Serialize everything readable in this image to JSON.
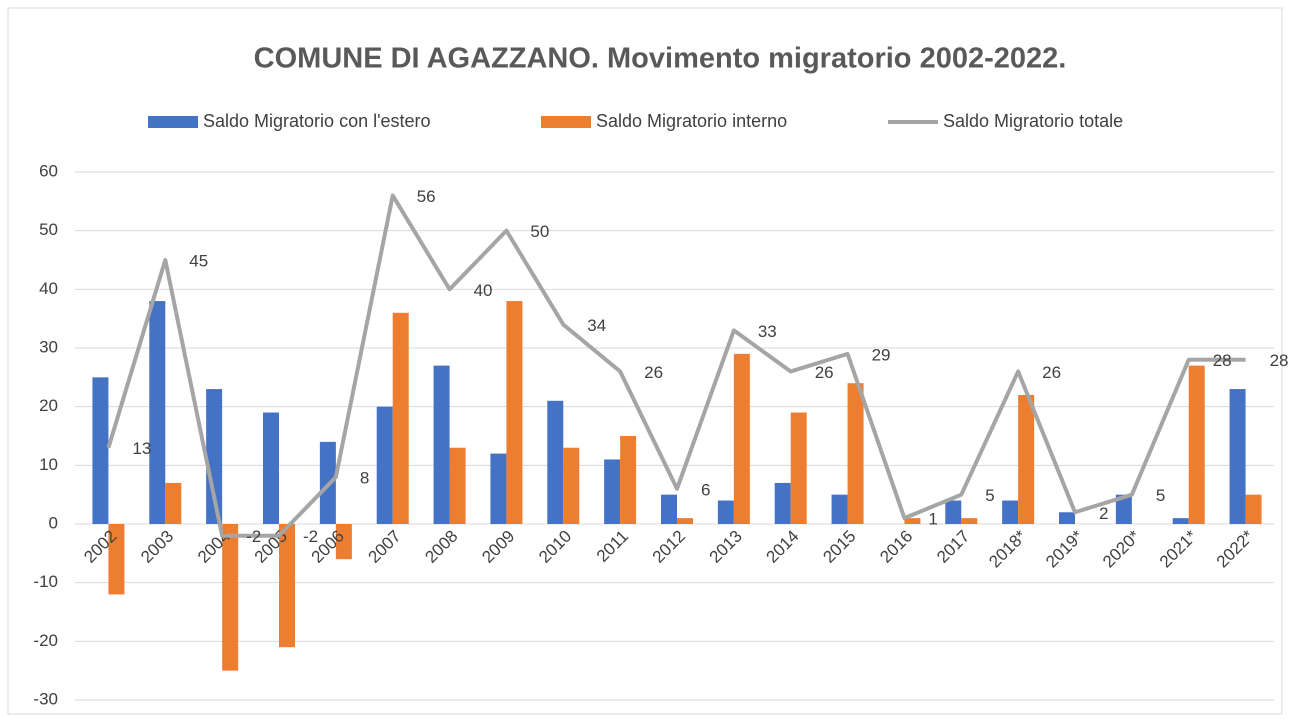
{
  "chart_data": {
    "type": "bar_line",
    "title": "COMUNE DI AGAZZANO. Movimento migratorio 2002-2022.",
    "categories": [
      "2002",
      "2003",
      "2004",
      "2005",
      "2006",
      "2007",
      "2008",
      "2009",
      "2010",
      "2011",
      "2012",
      "2013",
      "2014",
      "2015",
      "2016",
      "2017",
      "2018*",
      "2019*",
      "2020*",
      "2021*",
      "2022*"
    ],
    "series": [
      {
        "name": "Saldo Migratorio con l'estero",
        "type": "bar",
        "color": "#4472c4",
        "values": [
          25,
          38,
          23,
          19,
          14,
          20,
          27,
          12,
          21,
          11,
          5,
          4,
          7,
          5,
          0,
          4,
          4,
          2,
          5,
          1,
          23
        ]
      },
      {
        "name": "Saldo Migratorio interno",
        "type": "bar",
        "color": "#ed7d31",
        "values": [
          -12,
          7,
          -25,
          -21,
          -6,
          36,
          13,
          38,
          13,
          15,
          1,
          29,
          19,
          24,
          1,
          1,
          22,
          0,
          0,
          27,
          5
        ]
      },
      {
        "name": "Saldo Migratorio totale",
        "type": "line",
        "color": "#a5a5a5",
        "data_labels": true,
        "values": [
          13,
          45,
          -2,
          -2,
          8,
          56,
          40,
          50,
          34,
          26,
          6,
          33,
          26,
          29,
          1,
          5,
          26,
          2,
          5,
          28,
          28
        ]
      }
    ],
    "ylim": [
      -30,
      60
    ],
    "yticks": [
      -30,
      -20,
      -10,
      0,
      10,
      20,
      30,
      40,
      50,
      60
    ],
    "grid": true,
    "legend": "top"
  }
}
